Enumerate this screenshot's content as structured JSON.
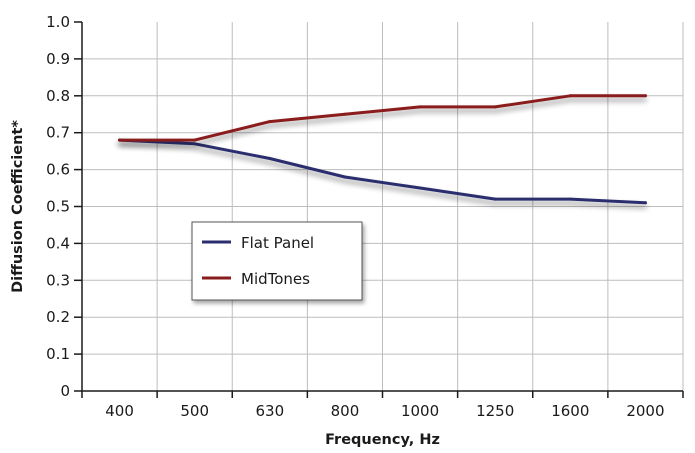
{
  "chart_data": {
    "type": "line",
    "xlabel": "Frequency, Hz",
    "ylabel": "Diffusion Coefficient*",
    "categories": [
      "400",
      "500",
      "630",
      "800",
      "1000",
      "1250",
      "1600",
      "2000"
    ],
    "ylim": [
      0,
      1.0
    ],
    "yticks": [
      "0",
      "0.1",
      "0.2",
      "0.3",
      "0.4",
      "0.5",
      "0.6",
      "0.7",
      "0.8",
      "0.9",
      "1.0"
    ],
    "grid": true,
    "legend_position": "lower-left",
    "series": [
      {
        "name": "Flat Panel",
        "color": "#2b2e6e",
        "values": [
          0.68,
          0.67,
          0.63,
          0.58,
          0.55,
          0.52,
          0.52,
          0.51
        ]
      },
      {
        "name": "MidTones",
        "color": "#8a1c1c",
        "values": [
          0.68,
          0.68,
          0.73,
          0.75,
          0.77,
          0.77,
          0.8,
          0.8
        ]
      }
    ]
  }
}
